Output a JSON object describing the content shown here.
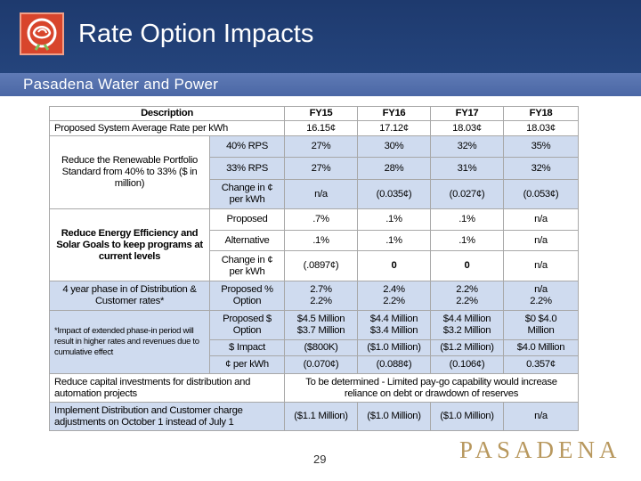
{
  "header": {
    "title": "Rate Option Impacts",
    "subtitle": "Pasadena Water and Power",
    "logo_icon": "rose-icon"
  },
  "table": {
    "headers": [
      "Description",
      "FY15",
      "FY16",
      "FY17",
      "FY18"
    ],
    "avg_rate": {
      "label": "Proposed System Average Rate per kWh",
      "values": [
        "16.15¢",
        "17.12¢",
        "18.03¢",
        "18.03¢"
      ]
    },
    "renewable": {
      "description": "Reduce the Renewable Portfolio Standard from 40% to 33% ($ in million)",
      "rows": [
        {
          "label": "40% RPS",
          "values": [
            "27%",
            "30%",
            "32%",
            "35%"
          ]
        },
        {
          "label": "33% RPS",
          "values": [
            "27%",
            "28%",
            "31%",
            "32%"
          ]
        },
        {
          "label": "Change in ¢ per kWh",
          "values": [
            "n/a",
            "(0.035¢)",
            "(0.027¢)",
            "(0.053¢)"
          ]
        }
      ]
    },
    "efficiency": {
      "description": "Reduce Energy Efficiency and Solar Goals to keep programs at current levels",
      "rows": [
        {
          "label": "Proposed",
          "values": [
            ".7%",
            ".1%",
            ".1%",
            "n/a"
          ]
        },
        {
          "label": "Alternative",
          "values": [
            ".1%",
            ".1%",
            ".1%",
            "n/a"
          ]
        },
        {
          "label": "Change in ¢ per kWh",
          "values": [
            "(.0897¢)",
            "0",
            "0",
            "n/a"
          ]
        }
      ]
    },
    "phase_in": {
      "description": "4 year phase in of Distribution & Customer rates*",
      "note": "*Impact of extended phase-in period will result in higher rates and revenues due to cumulative effect",
      "rows": [
        {
          "label": "Proposed % Option",
          "values": [
            "2.7% 2.2%",
            "2.4% 2.2%",
            "2.2% 2.2%",
            "n/a 2.2%"
          ]
        },
        {
          "label": "Proposed $ Option",
          "values": [
            "$4.5 Million $3.7 Million",
            "$4.4 Million $3.4 Million",
            "$4.4 Million $3.2 Million",
            "$0 $4.0 Million"
          ]
        },
        {
          "label": "$ Impact",
          "values": [
            "($800K)",
            "($1.0 Million)",
            "($1.2 Million)",
            "$4.0 Million"
          ]
        },
        {
          "label": "¢ per kWh",
          "values": [
            "(0.070¢)",
            "(0.088¢)",
            "(0.106¢)",
            "0.357¢"
          ]
        }
      ]
    },
    "capital": {
      "description": "Reduce capital investments for distribution and automation projects",
      "value": "To be determined - Limited pay-go capability would increase reliance on debt or drawdown of reserves"
    },
    "adjust": {
      "description": "Implement Distribution and Customer charge adjustments on October 1 instead of July 1",
      "values": [
        "($1.1 Million)",
        "($1.0 Million)",
        "($1.0 Million)",
        "n/a"
      ]
    }
  },
  "footer": {
    "page_number": "29",
    "brand": "PASADENA"
  }
}
